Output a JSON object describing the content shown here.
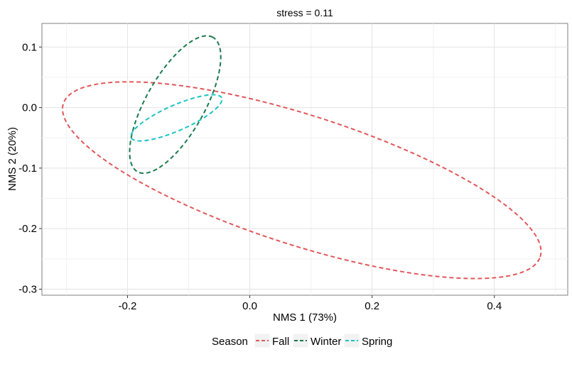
{
  "chart_data": {
    "type": "scatter",
    "title": "stress = 0.11",
    "xlabel": "NMS 1 (73%)",
    "ylabel": "NMS 2 (20%)",
    "xlim": [
      -0.34,
      0.52
    ],
    "ylim": [
      -0.31,
      0.139
    ],
    "xticks": [
      -0.2,
      0.0,
      0.2,
      0.4
    ],
    "xtick_labels": [
      "-0.2",
      "0.0",
      "0.2",
      "0.4"
    ],
    "yticks": [
      0.1,
      0.0,
      -0.1,
      -0.2,
      -0.3
    ],
    "ytick_labels": [
      "0.1",
      "0.0",
      "-0.1",
      "-0.2",
      "-0.3"
    ],
    "grid": true,
    "legend": {
      "title": "Season",
      "position": "bottom"
    },
    "series": [
      {
        "name": "Fall",
        "color": "#E15759",
        "ellipse": {
          "cx": 0.085,
          "cy": -0.12,
          "rx": 0.41,
          "ry": 0.107,
          "angle": -18
        }
      },
      {
        "name": "Winter",
        "color": "#1A7A4C",
        "ellipse": {
          "cx": -0.122,
          "cy": 0.005,
          "rx": 0.127,
          "ry": 0.048,
          "angle": 61
        }
      },
      {
        "name": "Spring",
        "color": "#1CC3C3",
        "ellipse": {
          "cx": -0.12,
          "cy": -0.017,
          "rx": 0.081,
          "ry": 0.021,
          "angle": 24
        }
      }
    ]
  }
}
